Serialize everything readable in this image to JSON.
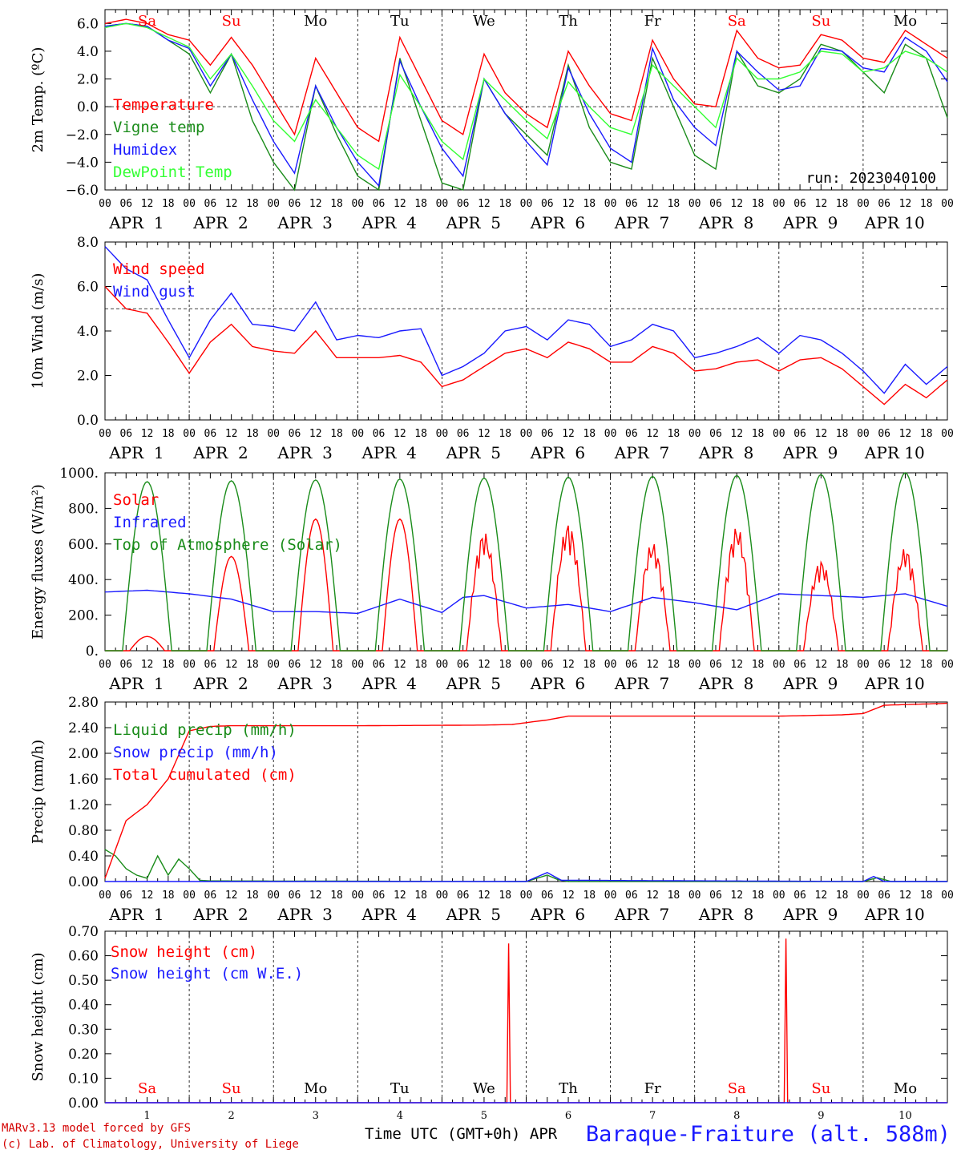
{
  "colors": {
    "red": "#ff0000",
    "green": "#1a8c1a",
    "blue": "#1a1aff",
    "light_green": "#33ff33"
  },
  "day_names": [
    "Sa",
    "Su",
    "Mo",
    "Tu",
    "We",
    "Th",
    "Fr",
    "Sa",
    "Su",
    "Mo"
  ],
  "weekend_days": [
    0,
    1,
    7,
    8
  ],
  "date_labels": [
    "APR  1",
    "APR  2",
    "APR  3",
    "APR  4",
    "APR  5",
    "APR  6",
    "APR  7",
    "APR  8",
    "APR  9",
    "APR 10"
  ],
  "hour_labels": [
    "00",
    "06",
    "12",
    "18"
  ],
  "day_numbers": [
    "1",
    "2",
    "3",
    "4",
    "5",
    "6",
    "7",
    "8",
    "9",
    "10"
  ],
  "footer": {
    "model": "MARv3.13 model forced by GFS",
    "copyright": "(c) Lab. of Climatology, University of Liege",
    "time_axis": "Time UTC (GMT+0h) APR",
    "station": "Baraque-Fraiture (alt. 588m)"
  },
  "chart_data": [
    {
      "type": "line",
      "ylabel": "2m Temp. (ºC)",
      "ylim": [
        -6,
        7
      ],
      "yticks": [
        -6,
        -4,
        -2,
        0,
        2,
        4,
        6
      ],
      "ytick_labels": [
        "−6.0",
        "−4.0",
        "−2.0",
        "0.0",
        "2.0",
        "4.0",
        "6.0"
      ],
      "dashed_y": 0,
      "annotation": "run: 2023040100",
      "x_unit": "hours since APR 1 00 UTC",
      "series": [
        {
          "name": "Temperature",
          "color": "#ff0000",
          "x": [
            0,
            6,
            12,
            18,
            24,
            30,
            36,
            42,
            48,
            54,
            60,
            66,
            72,
            78,
            84,
            90,
            96,
            102,
            108,
            114,
            120,
            126,
            132,
            138,
            144,
            150,
            156,
            162,
            168,
            174,
            180,
            186,
            192,
            198,
            204,
            210,
            216,
            222,
            228,
            234,
            240
          ],
          "y": [
            6.0,
            6.3,
            6.0,
            5.2,
            4.8,
            3.0,
            5.0,
            3.0,
            0.5,
            -2.0,
            3.5,
            1.0,
            -1.5,
            -2.5,
            5.0,
            2.0,
            -1.0,
            -2.0,
            3.8,
            1.0,
            -0.5,
            -1.5,
            4.0,
            1.5,
            -0.5,
            -1.0,
            4.8,
            2.0,
            0.2,
            0.0,
            5.5,
            3.5,
            2.8,
            3.0,
            5.2,
            4.8,
            3.5,
            3.2,
            5.5,
            4.5,
            3.5
          ]
        },
        {
          "name": "Vigne temp",
          "color": "#1a8c1a",
          "x": [
            0,
            6,
            12,
            18,
            24,
            30,
            36,
            42,
            48,
            54,
            60,
            66,
            72,
            78,
            84,
            90,
            96,
            102,
            108,
            114,
            120,
            126,
            132,
            138,
            144,
            150,
            156,
            162,
            168,
            174,
            180,
            186,
            192,
            198,
            204,
            210,
            216,
            222,
            228,
            234,
            240
          ],
          "y": [
            5.8,
            6.0,
            5.8,
            4.8,
            3.8,
            1.0,
            3.8,
            -1.0,
            -4.0,
            -6.0,
            1.5,
            -2.0,
            -5.0,
            -6.0,
            3.5,
            -1.0,
            -5.5,
            -6.0,
            2.0,
            -0.5,
            -2.0,
            -3.5,
            3.0,
            -1.5,
            -4.0,
            -4.5,
            3.5,
            0.0,
            -3.5,
            -4.5,
            4.0,
            1.5,
            1.0,
            2.0,
            4.5,
            4.0,
            2.5,
            1.0,
            4.5,
            3.5,
            -0.8
          ]
        },
        {
          "name": "Humidex",
          "color": "#1a1aff",
          "x": [
            0,
            6,
            12,
            18,
            24,
            30,
            36,
            42,
            48,
            54,
            60,
            66,
            72,
            78,
            84,
            90,
            96,
            102,
            108,
            114,
            120,
            126,
            132,
            138,
            144,
            150,
            156,
            162,
            168,
            174,
            180,
            186,
            192,
            198,
            204,
            210,
            216,
            222,
            228,
            234,
            240
          ],
          "y": [
            5.8,
            6.0,
            5.8,
            4.8,
            4.2,
            1.5,
            3.8,
            0.5,
            -2.5,
            -4.8,
            1.5,
            -1.5,
            -4.0,
            -5.7,
            3.3,
            0.0,
            -3.0,
            -5.0,
            2.0,
            -0.5,
            -2.5,
            -4.2,
            2.8,
            -0.5,
            -3.0,
            -4.0,
            4.2,
            0.5,
            -1.5,
            -2.8,
            4.0,
            2.5,
            1.2,
            1.5,
            4.2,
            4.0,
            2.8,
            2.5,
            5.0,
            4.0,
            1.8
          ]
        },
        {
          "name": "DewPoint Temp",
          "color": "#33ff33",
          "x": [
            0,
            6,
            12,
            18,
            24,
            30,
            36,
            42,
            48,
            54,
            60,
            66,
            72,
            78,
            84,
            90,
            96,
            102,
            108,
            114,
            120,
            126,
            132,
            138,
            144,
            150,
            156,
            162,
            168,
            174,
            180,
            186,
            192,
            198,
            204,
            210,
            216,
            222,
            228,
            234,
            240
          ],
          "y": [
            5.7,
            6.0,
            5.7,
            5.0,
            4.3,
            2.0,
            3.8,
            1.5,
            -1.0,
            -2.5,
            0.5,
            -1.5,
            -3.5,
            -4.5,
            2.3,
            0.0,
            -2.5,
            -3.8,
            2.0,
            0.5,
            -1.0,
            -2.3,
            1.8,
            0.0,
            -1.5,
            -2.0,
            3.0,
            1.5,
            0.0,
            -1.5,
            3.5,
            2.0,
            2.0,
            2.5,
            4.0,
            3.8,
            2.5,
            2.8,
            4.0,
            3.5,
            2.5
          ]
        }
      ]
    },
    {
      "type": "line",
      "ylabel": "10m Wind (m/s)",
      "ylim": [
        0,
        8
      ],
      "yticks": [
        0,
        2,
        4,
        6,
        8
      ],
      "ytick_labels": [
        "0.0",
        "2.0",
        "4.0",
        "6.0",
        "8.0"
      ],
      "dashed_y": 5,
      "x_unit": "hours since APR 1 00 UTC",
      "series": [
        {
          "name": "Wind speed",
          "color": "#ff0000",
          "x": [
            0,
            6,
            12,
            18,
            24,
            30,
            36,
            42,
            48,
            54,
            60,
            66,
            72,
            78,
            84,
            90,
            96,
            102,
            108,
            114,
            120,
            126,
            132,
            138,
            144,
            150,
            156,
            162,
            168,
            174,
            180,
            186,
            192,
            198,
            204,
            210,
            216,
            222,
            228,
            234,
            240
          ],
          "y": [
            6.0,
            5.0,
            4.8,
            3.5,
            2.1,
            3.5,
            4.3,
            3.3,
            3.1,
            3.0,
            4.0,
            2.8,
            2.8,
            2.8,
            2.9,
            2.6,
            1.5,
            1.8,
            2.4,
            3.0,
            3.2,
            2.8,
            3.5,
            3.2,
            2.6,
            2.6,
            3.3,
            3.0,
            2.2,
            2.3,
            2.6,
            2.7,
            2.2,
            2.7,
            2.8,
            2.3,
            1.5,
            0.7,
            1.6,
            1.0,
            1.8
          ]
        },
        {
          "name": "Wind gust",
          "color": "#1a1aff",
          "x": [
            0,
            6,
            12,
            18,
            24,
            30,
            36,
            42,
            48,
            54,
            60,
            66,
            72,
            78,
            84,
            90,
            96,
            102,
            108,
            114,
            120,
            126,
            132,
            138,
            144,
            150,
            156,
            162,
            168,
            174,
            180,
            186,
            192,
            198,
            204,
            210,
            216,
            222,
            228,
            234,
            240
          ],
          "y": [
            7.8,
            6.8,
            6.3,
            4.5,
            2.8,
            4.5,
            5.7,
            4.3,
            4.2,
            4.0,
            5.3,
            3.6,
            3.8,
            3.7,
            4.0,
            4.1,
            2.0,
            2.4,
            3.0,
            4.0,
            4.2,
            3.6,
            4.5,
            4.3,
            3.3,
            3.6,
            4.3,
            4.0,
            2.8,
            3.0,
            3.3,
            3.7,
            3.0,
            3.8,
            3.6,
            3.0,
            2.2,
            1.2,
            2.5,
            1.6,
            2.4
          ]
        }
      ]
    },
    {
      "type": "line",
      "ylabel": "Energy fluxes (W/m²)",
      "ylim": [
        0,
        1000
      ],
      "yticks": [
        0,
        200,
        400,
        600,
        800,
        1000
      ],
      "ytick_labels": [
        "0.",
        "200.",
        "400.",
        "600.",
        "800.",
        "1000."
      ],
      "x_unit": "hours since APR 1 00 UTC",
      "series": [
        {
          "name": "Solar",
          "color": "#ff0000",
          "daily_peaks": [
            80,
            530,
            740,
            740,
            670,
            720,
            610,
            700,
            510,
            580
          ]
        },
        {
          "name": "Infrared",
          "color": "#1a1aff",
          "x": [
            0,
            12,
            24,
            36,
            48,
            60,
            72,
            84,
            96,
            102,
            108,
            120,
            132,
            144,
            156,
            168,
            180,
            192,
            204,
            216,
            228,
            240
          ],
          "y": [
            330,
            340,
            320,
            290,
            220,
            220,
            210,
            290,
            215,
            300,
            310,
            240,
            260,
            220,
            300,
            270,
            230,
            320,
            310,
            300,
            320,
            250
          ]
        },
        {
          "name": "Top of Atmosphere (Solar)",
          "color": "#1a8c1a",
          "daily_peaks": [
            950,
            955,
            960,
            965,
            970,
            975,
            980,
            985,
            990,
            1000
          ]
        }
      ]
    },
    {
      "type": "line",
      "ylabel": "Precip (mm/h)",
      "ylim": [
        0,
        2.8
      ],
      "yticks": [
        0,
        0.4,
        0.8,
        1.2,
        1.6,
        2.0,
        2.4,
        2.8
      ],
      "ytick_labels": [
        "0.00",
        "0.40",
        "0.80",
        "1.20",
        "1.60",
        "2.00",
        "2.40",
        "2.80"
      ],
      "x_unit": "hours since APR 1 00 UTC",
      "series": [
        {
          "name": "Liquid precip (mm/h)",
          "color": "#1a8c1a",
          "x": [
            0,
            3,
            6,
            9,
            12,
            15,
            18,
            21,
            24,
            27,
            30,
            120,
            126,
            129,
            132,
            216,
            220,
            224,
            240
          ],
          "y": [
            0.5,
            0.4,
            0.2,
            0.1,
            0.05,
            0.4,
            0.1,
            0.35,
            0.2,
            0.02,
            0.01,
            0.0,
            0.1,
            0.03,
            0.0,
            0.0,
            0.06,
            0.0,
            0.0
          ]
        },
        {
          "name": "Snow precip (mm/h)",
          "color": "#1a1aff",
          "x": [
            0,
            60,
            120,
            126,
            130,
            216,
            219,
            222,
            240
          ],
          "y": [
            0.0,
            0.0,
            0.0,
            0.14,
            0.02,
            0.0,
            0.08,
            0.0,
            0.0
          ]
        },
        {
          "name": "Total cumulated (cm)",
          "color": "#ff0000",
          "x": [
            0,
            6,
            12,
            18,
            24,
            30,
            36,
            72,
            108,
            116,
            126,
            132,
            168,
            192,
            210,
            216,
            222,
            240
          ],
          "y": [
            0.05,
            0.95,
            1.2,
            1.6,
            2.35,
            2.42,
            2.43,
            2.43,
            2.44,
            2.45,
            2.52,
            2.58,
            2.58,
            2.58,
            2.6,
            2.62,
            2.75,
            2.78
          ]
        }
      ]
    },
    {
      "type": "line",
      "ylabel": "Snow height (cm)",
      "ylim": [
        0,
        0.7
      ],
      "yticks": [
        0,
        0.1,
        0.2,
        0.3,
        0.4,
        0.5,
        0.6,
        0.7
      ],
      "ytick_labels": [
        "0.00",
        "0.10",
        "0.20",
        "0.30",
        "0.40",
        "0.50",
        "0.60",
        "0.70"
      ],
      "x_unit": "hours since APR 1 00 UTC",
      "series": [
        {
          "name": "Snow height (cm)",
          "color": "#ff0000",
          "x": [
            0,
            114.5,
            115,
            115.5,
            193.5,
            194,
            194.5,
            240
          ],
          "y": [
            0,
            0,
            0.65,
            0,
            0,
            0.67,
            0,
            0
          ]
        },
        {
          "name": "Snow height (cm W.E.)",
          "color": "#1a1aff",
          "x": [
            0,
            240
          ],
          "y": [
            0,
            0
          ]
        }
      ]
    }
  ]
}
